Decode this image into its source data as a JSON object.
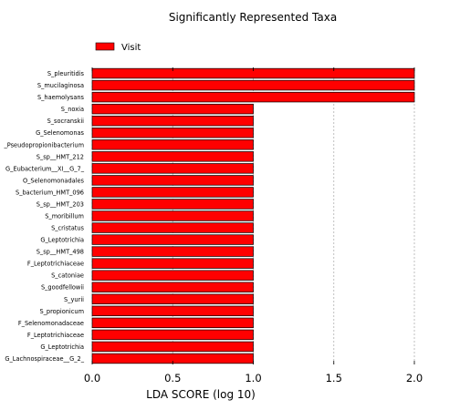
{
  "chart_data": {
    "type": "bar",
    "orientation": "horizontal",
    "title": "Significantly Represented Taxa",
    "xlabel": "LDA SCORE (log 10)",
    "ylabel": "",
    "xlim": [
      0.0,
      2.0
    ],
    "xticks": [
      "0.0",
      "0.5",
      "1.0",
      "1.5",
      "2.0"
    ],
    "grid": "vertical dashed",
    "legend": {
      "placement": "top-left",
      "entries": [
        {
          "label": "Visit",
          "color": "#ff0000"
        }
      ]
    },
    "bar_color": "#ff0000",
    "bar_edge_color": "#000000",
    "categories": [
      "S_pleuritidis",
      "S_mucilaginosa",
      "S_haemolysans",
      "S_noxia",
      "S_socranskii",
      "G_Selenomonas",
      "_Pseudopropionibacterium",
      "S_sp__HMT_212",
      "G_Eubacterium__XI__G_7_",
      "O_Selenomonadales",
      "S_bacterium_HMT_096",
      "S_sp__HMT_203",
      "S_moribillum",
      "S_cristatus",
      "G_Leptotrichia",
      "S_sp__HMT_498",
      "F_Leptotrichiaceae",
      "S_catoniae",
      "S_goodfellowii",
      "S_yurii",
      "S_propionicum",
      "F_Selenomonadaceae",
      "F_Leptotrichiaceae",
      "G_Leptotrichia",
      "G_Lachnospiraceae__G_2_"
    ],
    "series": [
      {
        "name": "Visit",
        "values": [
          2.0,
          2.0,
          2.0,
          1.0,
          1.0,
          1.0,
          1.0,
          1.0,
          1.0,
          1.0,
          1.0,
          1.0,
          1.0,
          1.0,
          1.0,
          1.0,
          1.0,
          1.0,
          1.0,
          1.0,
          1.0,
          1.0,
          1.0,
          1.0,
          1.0
        ]
      }
    ]
  }
}
